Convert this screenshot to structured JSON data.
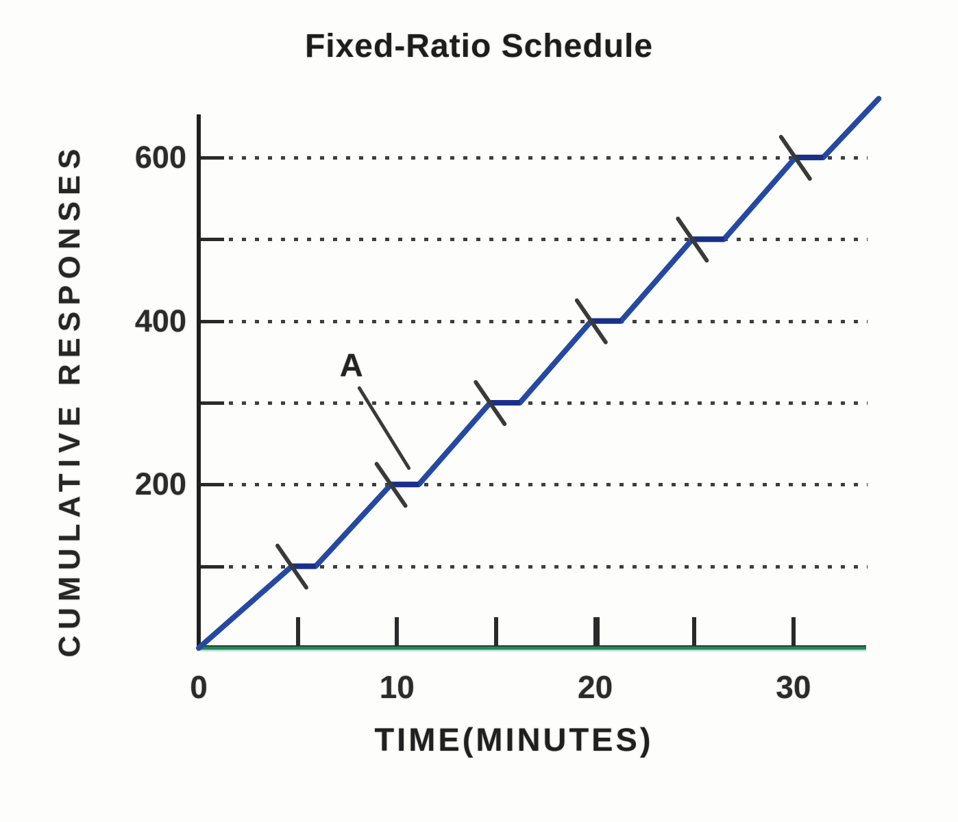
{
  "title": "Fixed-Ratio Schedule",
  "chart_data": {
    "type": "line",
    "title": "Fixed-Ratio Schedule",
    "xlabel": "TIME(MINUTES)",
    "ylabel": "CUMULATIVE RESPONSES",
    "xlim": [
      0,
      33.6
    ],
    "ylim": [
      0,
      672
    ],
    "x_tick_labels": [
      "0",
      "10",
      "20",
      "30"
    ],
    "x_tick_values": [
      0,
      10,
      20,
      30
    ],
    "x_axis_tick_marks": [
      5,
      10,
      15,
      20,
      25,
      30
    ],
    "y_tick_labels": [
      "200",
      "400",
      "600"
    ],
    "y_tick_values": [
      200,
      400,
      600
    ],
    "y_gridlines": [
      100,
      200,
      300,
      400,
      500,
      600
    ],
    "grid_style": "dotted horizontal",
    "legend": "none",
    "line_color": "#2549a2",
    "pause_color": "#1a2f8a",
    "hatch_color": "#3a3a3a",
    "series": [
      {
        "name": "cumulative-responses",
        "description": "cumulative record: steady response runs with post-reinforcement pauses every 100 responses",
        "points": [
          [
            0,
            0
          ],
          [
            4.7,
            100
          ],
          [
            5.9,
            100
          ],
          [
            9.7,
            200
          ],
          [
            11.1,
            200
          ],
          [
            14.7,
            300
          ],
          [
            16.2,
            300
          ],
          [
            19.8,
            400
          ],
          [
            21.3,
            400
          ],
          [
            24.9,
            500
          ],
          [
            26.5,
            500
          ],
          [
            30.1,
            600
          ],
          [
            31.5,
            600
          ],
          [
            34.3,
            672
          ]
        ]
      }
    ],
    "reinforcement_hatch_marks": [
      [
        4.7,
        100
      ],
      [
        9.7,
        200
      ],
      [
        14.7,
        300
      ],
      [
        19.8,
        400
      ],
      [
        24.9,
        500
      ],
      [
        30.1,
        600
      ]
    ],
    "annotation": {
      "label": "A",
      "label_at": [
        7.7,
        346
      ],
      "leader_from": [
        8.1,
        318
      ],
      "leader_to": [
        10.6,
        220
      ],
      "points_to_hatch_at": [
        9.7,
        200
      ]
    }
  }
}
